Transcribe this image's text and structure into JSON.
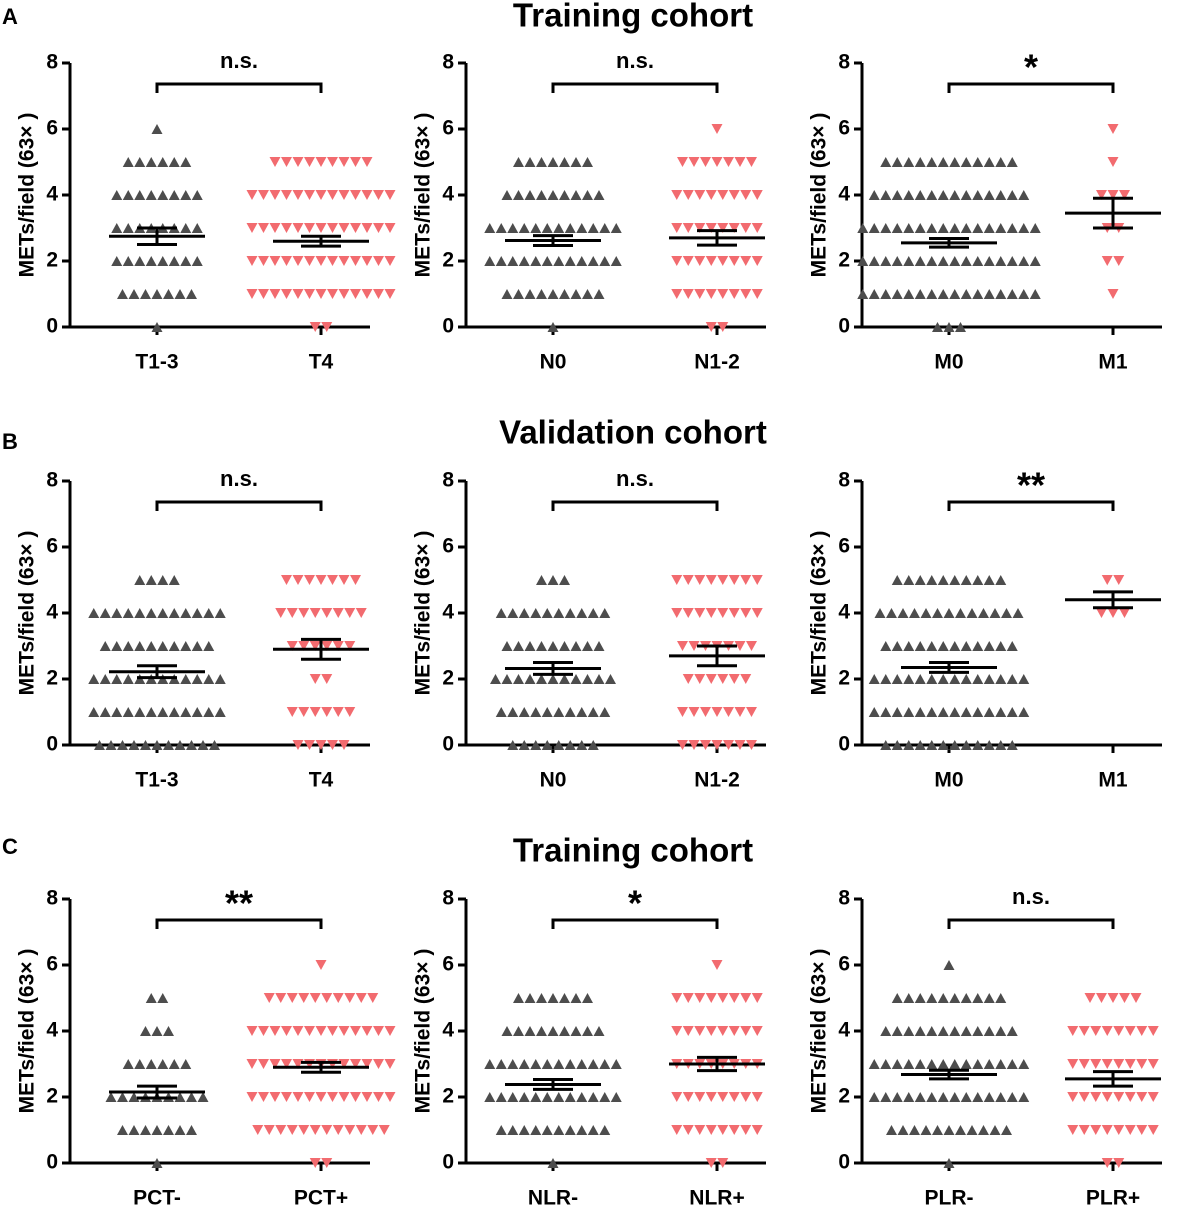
{
  "rows": [
    {
      "label": "A",
      "title": "Training cohort"
    },
    {
      "label": "B",
      "title": "Validation cohort"
    },
    {
      "label": "C",
      "title": "Training cohort"
    }
  ],
  "chart_data": [
    {
      "type": "dotplot",
      "ylabel": "METs/field (63× )",
      "ylim": [
        0,
        8
      ],
      "yticks": [
        0,
        2,
        4,
        6,
        8
      ],
      "categories": [
        "T1-3",
        "T4"
      ],
      "annotation": "n.s.",
      "groups": [
        {
          "color": "#4d4d4d",
          "marker": "up",
          "mean": 2.75,
          "sem": 0.25,
          "points": [
            {
              "y": 6,
              "n": 1
            },
            {
              "y": 5,
              "n": 6
            },
            {
              "y": 4,
              "n": 8
            },
            {
              "y": 3,
              "n": 8
            },
            {
              "y": 2,
              "n": 8
            },
            {
              "y": 1,
              "n": 7
            },
            {
              "y": 0,
              "n": 1
            }
          ]
        },
        {
          "color": "#f26b6f",
          "marker": "down",
          "mean": 2.6,
          "sem": 0.15,
          "points": [
            {
              "y": 5,
              "n": 9
            },
            {
              "y": 4,
              "n": 13
            },
            {
              "y": 3,
              "n": 13
            },
            {
              "y": 2,
              "n": 13
            },
            {
              "y": 1,
              "n": 13
            },
            {
              "y": 0,
              "n": 2
            }
          ]
        }
      ]
    },
    {
      "type": "dotplot",
      "ylabel": "METs/field (63× )",
      "ylim": [
        0,
        8
      ],
      "yticks": [
        0,
        2,
        4,
        6,
        8
      ],
      "categories": [
        "N0",
        "N1-2"
      ],
      "annotation": "n.s.",
      "groups": [
        {
          "color": "#4d4d4d",
          "marker": "up",
          "mean": 2.62,
          "sem": 0.15,
          "points": [
            {
              "y": 5,
              "n": 7
            },
            {
              "y": 4,
              "n": 9
            },
            {
              "y": 3,
              "n": 12
            },
            {
              "y": 2,
              "n": 12
            },
            {
              "y": 1,
              "n": 9
            },
            {
              "y": 0,
              "n": 1
            }
          ]
        },
        {
          "color": "#f26b6f",
          "marker": "down",
          "mean": 2.7,
          "sem": 0.22,
          "points": [
            {
              "y": 6,
              "n": 1
            },
            {
              "y": 5,
              "n": 7
            },
            {
              "y": 4,
              "n": 8
            },
            {
              "y": 3,
              "n": 8
            },
            {
              "y": 2,
              "n": 8
            },
            {
              "y": 1,
              "n": 8
            },
            {
              "y": 0,
              "n": 2
            }
          ]
        }
      ]
    },
    {
      "type": "dotplot",
      "ylabel": "METs/field (63× )",
      "ylim": [
        0,
        8
      ],
      "yticks": [
        0,
        2,
        4,
        6,
        8
      ],
      "categories": [
        "M0",
        "M1"
      ],
      "annotation": "*",
      "groups": [
        {
          "color": "#4d4d4d",
          "marker": "up",
          "mean": 2.55,
          "sem": 0.13,
          "points": [
            {
              "y": 5,
              "n": 12
            },
            {
              "y": 4,
              "n": 14
            },
            {
              "y": 3,
              "n": 16
            },
            {
              "y": 2,
              "n": 16
            },
            {
              "y": 1,
              "n": 16
            },
            {
              "y": 0,
              "n": 3
            }
          ]
        },
        {
          "color": "#f26b6f",
          "marker": "down",
          "mean": 3.45,
          "sem": 0.45,
          "points": [
            {
              "y": 6,
              "n": 1
            },
            {
              "y": 5,
              "n": 1
            },
            {
              "y": 4,
              "n": 3
            },
            {
              "y": 3,
              "n": 2
            },
            {
              "y": 2,
              "n": 2
            },
            {
              "y": 1,
              "n": 1
            }
          ]
        }
      ]
    },
    {
      "type": "dotplot",
      "ylabel": "METs/field (63× )",
      "ylim": [
        0,
        8
      ],
      "yticks": [
        0,
        2,
        4,
        6,
        8
      ],
      "categories": [
        "T1-3",
        "T4"
      ],
      "annotation": "n.s.",
      "groups": [
        {
          "color": "#4d4d4d",
          "marker": "up",
          "mean": 2.22,
          "sem": 0.18,
          "points": [
            {
              "y": 5,
              "n": 4
            },
            {
              "y": 4,
              "n": 12
            },
            {
              "y": 3,
              "n": 10
            },
            {
              "y": 2,
              "n": 12
            },
            {
              "y": 1,
              "n": 12
            },
            {
              "y": 0,
              "n": 11
            }
          ]
        },
        {
          "color": "#f26b6f",
          "marker": "down",
          "mean": 2.9,
          "sem": 0.3,
          "points": [
            {
              "y": 5,
              "n": 7
            },
            {
              "y": 4,
              "n": 8
            },
            {
              "y": 3,
              "n": 6
            },
            {
              "y": 2,
              "n": 2
            },
            {
              "y": 1,
              "n": 6
            },
            {
              "y": 0,
              "n": 5
            }
          ]
        }
      ]
    },
    {
      "type": "dotplot",
      "ylabel": "METs/field (63× )",
      "ylim": [
        0,
        8
      ],
      "yticks": [
        0,
        2,
        4,
        6,
        8
      ],
      "categories": [
        "N0",
        "N1-2"
      ],
      "annotation": "n.s.",
      "groups": [
        {
          "color": "#4d4d4d",
          "marker": "up",
          "mean": 2.32,
          "sem": 0.18,
          "points": [
            {
              "y": 5,
              "n": 3
            },
            {
              "y": 4,
              "n": 10
            },
            {
              "y": 3,
              "n": 9
            },
            {
              "y": 2,
              "n": 11
            },
            {
              "y": 1,
              "n": 10
            },
            {
              "y": 0,
              "n": 8
            }
          ]
        },
        {
          "color": "#f26b6f",
          "marker": "down",
          "mean": 2.7,
          "sem": 0.3,
          "points": [
            {
              "y": 5,
              "n": 8
            },
            {
              "y": 4,
              "n": 8
            },
            {
              "y": 3,
              "n": 7
            },
            {
              "y": 2,
              "n": 6
            },
            {
              "y": 1,
              "n": 7
            },
            {
              "y": 0,
              "n": 7
            }
          ]
        }
      ]
    },
    {
      "type": "dotplot",
      "ylabel": "METs/field (63× )",
      "ylim": [
        0,
        8
      ],
      "yticks": [
        0,
        2,
        4,
        6,
        8
      ],
      "categories": [
        "M0",
        "M1"
      ],
      "annotation": "**",
      "groups": [
        {
          "color": "#4d4d4d",
          "marker": "up",
          "mean": 2.35,
          "sem": 0.15,
          "points": [
            {
              "y": 5,
              "n": 10
            },
            {
              "y": 4,
              "n": 13
            },
            {
              "y": 3,
              "n": 12
            },
            {
              "y": 2,
              "n": 14
            },
            {
              "y": 1,
              "n": 14
            },
            {
              "y": 0,
              "n": 12
            }
          ]
        },
        {
          "color": "#f26b6f",
          "marker": "down",
          "mean": 4.4,
          "sem": 0.24,
          "points": [
            {
              "y": 5,
              "n": 2
            },
            {
              "y": 4,
              "n": 3
            }
          ]
        }
      ]
    },
    {
      "type": "dotplot",
      "ylabel": "METs/field (63× )",
      "ylim": [
        0,
        8
      ],
      "yticks": [
        0,
        2,
        4,
        6,
        8
      ],
      "categories": [
        "PCT-",
        "PCT+"
      ],
      "annotation": "**",
      "groups": [
        {
          "color": "#4d4d4d",
          "marker": "up",
          "mean": 2.15,
          "sem": 0.18,
          "points": [
            {
              "y": 5,
              "n": 2
            },
            {
              "y": 4,
              "n": 3
            },
            {
              "y": 3,
              "n": 6
            },
            {
              "y": 2,
              "n": 9
            },
            {
              "y": 1,
              "n": 7
            },
            {
              "y": 0,
              "n": 1
            }
          ]
        },
        {
          "color": "#f26b6f",
          "marker": "down",
          "mean": 2.9,
          "sem": 0.15,
          "points": [
            {
              "y": 6,
              "n": 1
            },
            {
              "y": 5,
              "n": 10
            },
            {
              "y": 4,
              "n": 13
            },
            {
              "y": 3,
              "n": 13
            },
            {
              "y": 2,
              "n": 13
            },
            {
              "y": 1,
              "n": 12
            },
            {
              "y": 0,
              "n": 2
            }
          ]
        }
      ]
    },
    {
      "type": "dotplot",
      "ylabel": "METs/field (63× )",
      "ylim": [
        0,
        8
      ],
      "yticks": [
        0,
        2,
        4,
        6,
        8
      ],
      "categories": [
        "NLR-",
        "NLR+"
      ],
      "annotation": "*",
      "groups": [
        {
          "color": "#4d4d4d",
          "marker": "up",
          "mean": 2.38,
          "sem": 0.15,
          "points": [
            {
              "y": 5,
              "n": 7
            },
            {
              "y": 4,
              "n": 9
            },
            {
              "y": 3,
              "n": 12
            },
            {
              "y": 2,
              "n": 12
            },
            {
              "y": 1,
              "n": 10
            },
            {
              "y": 0,
              "n": 1
            }
          ]
        },
        {
          "color": "#f26b6f",
          "marker": "down",
          "mean": 3.0,
          "sem": 0.2,
          "points": [
            {
              "y": 6,
              "n": 1
            },
            {
              "y": 5,
              "n": 8
            },
            {
              "y": 4,
              "n": 8
            },
            {
              "y": 3,
              "n": 8
            },
            {
              "y": 2,
              "n": 8
            },
            {
              "y": 1,
              "n": 8
            },
            {
              "y": 0,
              "n": 2
            }
          ]
        }
      ]
    },
    {
      "type": "dotplot",
      "ylabel": "METs/field (63× )",
      "ylim": [
        0,
        8
      ],
      "yticks": [
        0,
        2,
        4,
        6,
        8
      ],
      "categories": [
        "PLR-",
        "PLR+"
      ],
      "annotation": "n.s.",
      "groups": [
        {
          "color": "#4d4d4d",
          "marker": "up",
          "mean": 2.68,
          "sem": 0.13,
          "points": [
            {
              "y": 6,
              "n": 1
            },
            {
              "y": 5,
              "n": 10
            },
            {
              "y": 4,
              "n": 12
            },
            {
              "y": 3,
              "n": 14
            },
            {
              "y": 2,
              "n": 14
            },
            {
              "y": 1,
              "n": 11
            },
            {
              "y": 0,
              "n": 1
            }
          ]
        },
        {
          "color": "#f26b6f",
          "marker": "down",
          "mean": 2.55,
          "sem": 0.22,
          "points": [
            {
              "y": 5,
              "n": 5
            },
            {
              "y": 4,
              "n": 8
            },
            {
              "y": 3,
              "n": 8
            },
            {
              "y": 2,
              "n": 8
            },
            {
              "y": 1,
              "n": 8
            },
            {
              "y": 0,
              "n": 2
            }
          ]
        }
      ]
    }
  ]
}
